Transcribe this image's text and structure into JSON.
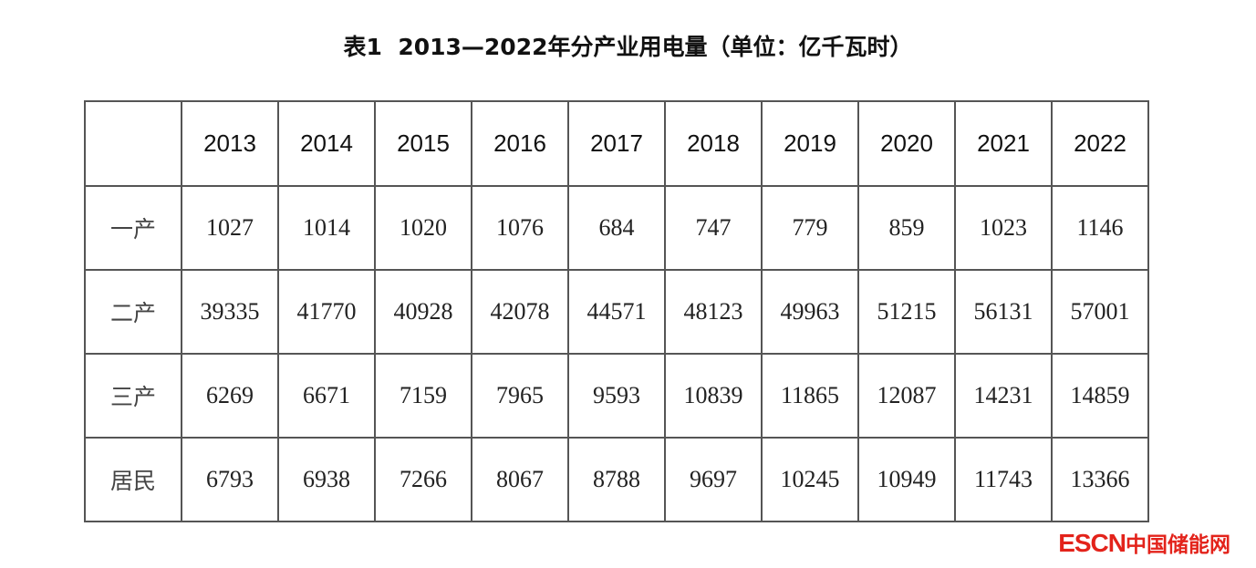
{
  "header": {
    "title": "表1  2013—2022年分产业用电量（单位：亿千瓦时）"
  },
  "table": {
    "columns": [
      "2013",
      "2014",
      "2015",
      "2016",
      "2017",
      "2018",
      "2019",
      "2020",
      "2021",
      "2022"
    ],
    "rows": [
      {
        "label": "一产",
        "values": [
          1027,
          1014,
          1020,
          1076,
          684,
          747,
          779,
          859,
          1023,
          1146
        ]
      },
      {
        "label": "二产",
        "values": [
          39335,
          41770,
          40928,
          42078,
          44571,
          48123,
          49963,
          51215,
          56131,
          57001
        ]
      },
      {
        "label": "三产",
        "values": [
          6269,
          6671,
          7159,
          7965,
          9593,
          10839,
          11865,
          12087,
          14231,
          14859
        ]
      },
      {
        "label": "居民",
        "values": [
          6793,
          6938,
          7266,
          8067,
          8788,
          9697,
          10245,
          10949,
          11743,
          13366
        ]
      }
    ]
  },
  "watermark": {
    "logo": "ESCN",
    "text": "中国储能网"
  }
}
